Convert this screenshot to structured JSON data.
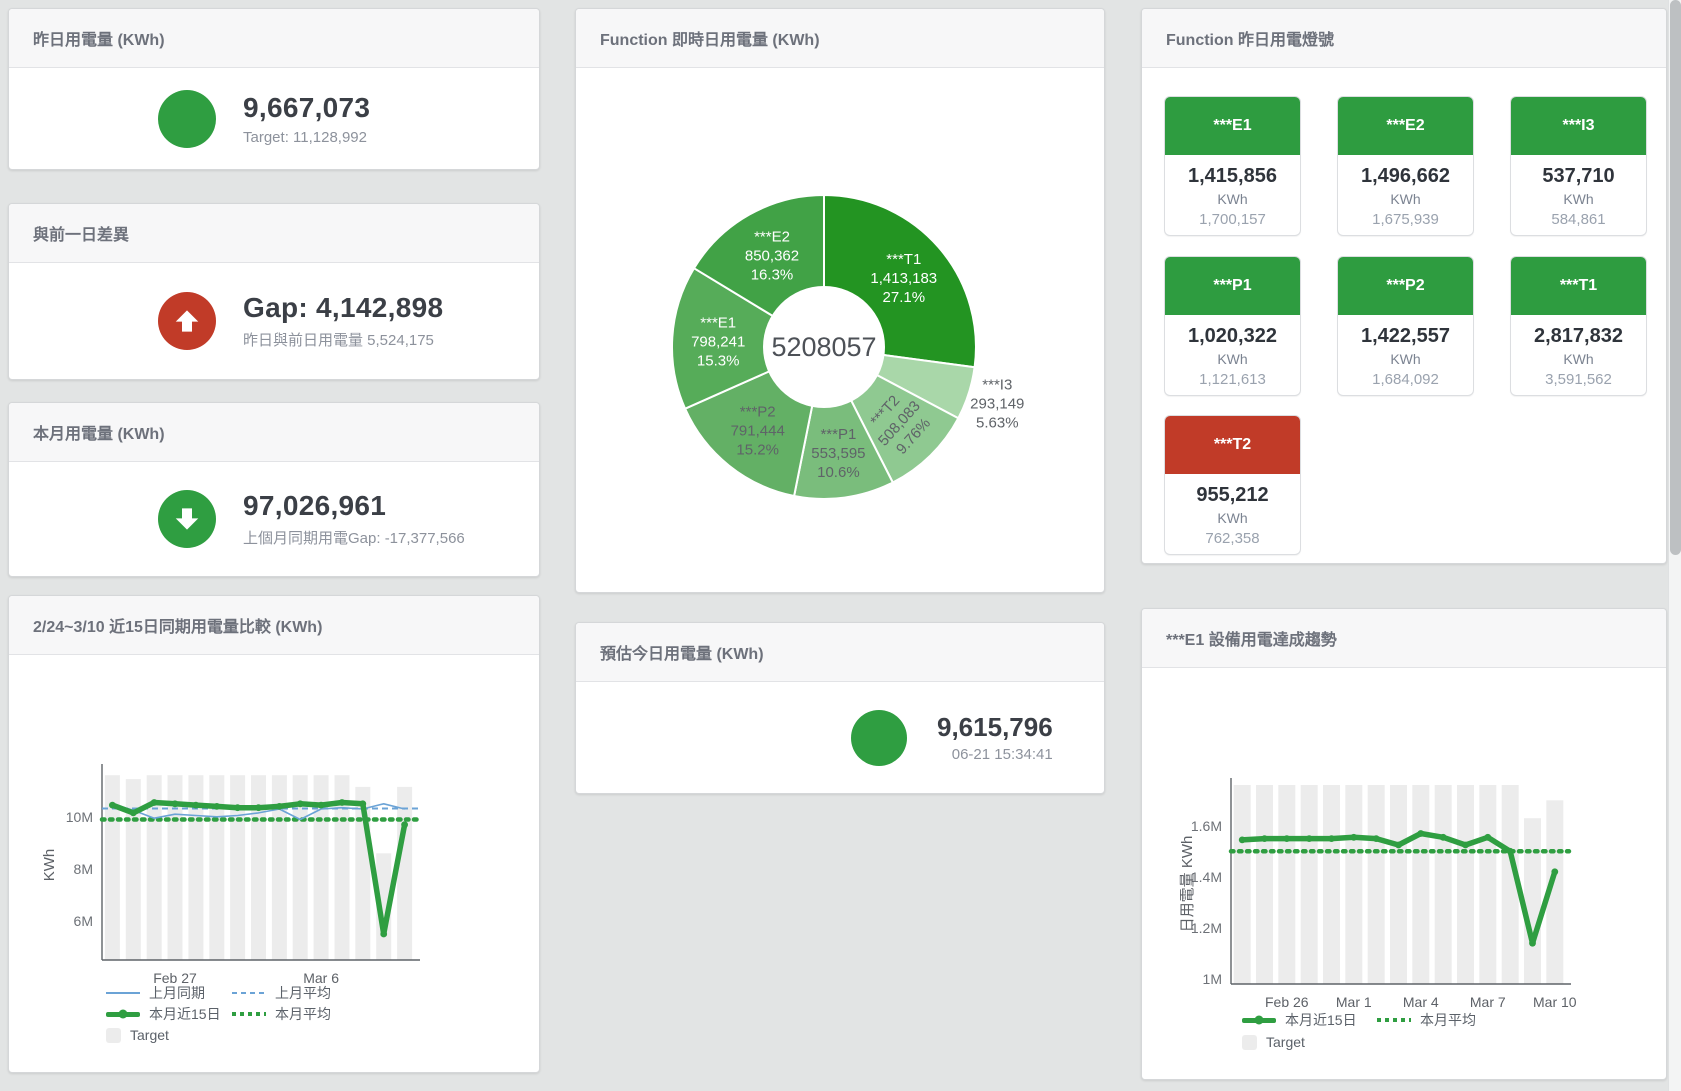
{
  "cards": {
    "yesterday": {
      "title": "昨日用電量 (KWh)",
      "value": "9,667,073",
      "subtitle": "Target: 11,128,992",
      "status": "green"
    },
    "day_gap": {
      "title": "與前一日差異",
      "value": "Gap: 4,142,898",
      "subtitle": "昨日與前日用電量 5,524,175",
      "status": "red-up"
    },
    "month": {
      "title": "本月用電量 (KWh)",
      "value": "97,026,961",
      "subtitle": "上個月同期用電Gap: -17,377,566",
      "status": "green-down"
    },
    "realtime_donut": {
      "title": "Function 即時日用電量 (KWh)"
    },
    "lights": {
      "title": "Function 昨日用電燈號"
    },
    "compare": {
      "title": "2/24~3/10 近15日同期用電量比較 (KWh)"
    },
    "estimate": {
      "title": "預估今日用電量 (KWh)",
      "value": "9,615,796",
      "subtitle": "06-21 15:34:41",
      "status": "green"
    },
    "trend": {
      "title": "***E1 設備用電達成趨勢"
    }
  },
  "lights_tiles": [
    {
      "label": "***E1",
      "value": "1,415,856",
      "unit": "KWh",
      "target": "1,700,157",
      "status": "green"
    },
    {
      "label": "***E2",
      "value": "1,496,662",
      "unit": "KWh",
      "target": "1,675,939",
      "status": "green"
    },
    {
      "label": "***I3",
      "value": "537,710",
      "unit": "KWh",
      "target": "584,861",
      "status": "green"
    },
    {
      "label": "***P1",
      "value": "1,020,322",
      "unit": "KWh",
      "target": "1,121,613",
      "status": "green"
    },
    {
      "label": "***P2",
      "value": "1,422,557",
      "unit": "KWh",
      "target": "1,684,092",
      "status": "green"
    },
    {
      "label": "***T1",
      "value": "2,817,832",
      "unit": "KWh",
      "target": "3,591,562",
      "status": "green"
    },
    {
      "label": "***T2",
      "value": "955,212",
      "unit": "KWh",
      "target": "762,358",
      "status": "red"
    }
  ],
  "colors": {
    "green": "#2f9e41",
    "red": "#c13b28",
    "blue_line": "#6ba3d6",
    "bar_gray": "#ececec"
  },
  "chart_data": [
    {
      "type": "pie",
      "title": "Function 即時日用電量 (KWh)",
      "center_label": "5208057",
      "legend_position": "none",
      "slices": [
        {
          "name": "***T1",
          "value": 1413183,
          "value_label": "1,413,183",
          "pct_label": "27.1%",
          "color": "#239422",
          "text": "#ffffff"
        },
        {
          "name": "***I3",
          "value": 293149,
          "value_label": "293,149",
          "pct_label": "5.63%",
          "color": "#a9d7a9",
          "text": "#5f6368",
          "outside": true
        },
        {
          "name": "***T2",
          "value": 508083,
          "value_label": "508,083",
          "pct_label": "9.76%",
          "color": "#8fc991",
          "text": "#5f6368",
          "rotate": -48
        },
        {
          "name": "***P1",
          "value": 553595,
          "value_label": "553,595",
          "pct_label": "10.6%",
          "color": "#7abd7c",
          "text": "#5f6368"
        },
        {
          "name": "***P2",
          "value": 791444,
          "value_label": "791,444",
          "pct_label": "15.2%",
          "color": "#63b065",
          "text": "#5f6368"
        },
        {
          "name": "***E1",
          "value": 798241,
          "value_label": "798,241",
          "pct_label": "15.3%",
          "color": "#56ac59",
          "text": "#ffffff"
        },
        {
          "name": "***E2",
          "value": 850362,
          "value_label": "850,362",
          "pct_label": "16.3%",
          "color": "#41a246",
          "text": "#ffffff"
        }
      ]
    },
    {
      "type": "line",
      "title": "2/24~3/10 近15日同期用電量比較 (KWh)",
      "ylabel": "KWh",
      "ylim": [
        4500000,
        11800000
      ],
      "yticks": [
        6000000,
        8000000,
        10000000
      ],
      "ytick_labels": [
        "6M",
        "8M",
        "10M"
      ],
      "x_count": 15,
      "x_tick_positions": [
        3,
        10
      ],
      "x_tick_labels": [
        "Feb 27",
        "Mar 6"
      ],
      "bar_color": "#ececec",
      "target_bars": [
        11600000,
        11450000,
        11600000,
        11600000,
        11600000,
        11600000,
        11600000,
        11600000,
        11600000,
        11600000,
        11600000,
        11600000,
        11150000,
        8600000,
        11150000
      ],
      "series": [
        {
          "name": "上月平均",
          "style": "line_dashed",
          "color": "#6ba3d6",
          "constant": 10320000
        },
        {
          "name": "本月平均",
          "style": "line_dotted",
          "color": "#2f9e41",
          "constant": 9900000
        },
        {
          "name": "上月同期",
          "style": "line_thin",
          "color": "#6ba3d6",
          "values": [
            10500000,
            10250000,
            9950000,
            10100000,
            10050000,
            10000000,
            10050000,
            10150000,
            10300000,
            9900000,
            10300000,
            10350000,
            10300000,
            10500000,
            10300000
          ]
        },
        {
          "name": "本月近15日",
          "style": "line_thick",
          "color": "#2f9e41",
          "values": [
            10450000,
            10150000,
            10550000,
            10500000,
            10450000,
            10400000,
            10350000,
            10350000,
            10400000,
            10500000,
            10450000,
            10550000,
            10500000,
            5500000,
            9700000
          ]
        }
      ],
      "legend_rows": [
        [
          {
            "label": "上月同期",
            "swatch": "line_thin_blue"
          },
          {
            "label": "上月平均",
            "swatch": "dashed_blue"
          }
        ],
        [
          {
            "label": "本月近15日",
            "swatch": "thick_green"
          },
          {
            "label": "本月平均",
            "swatch": "dotted_green"
          }
        ],
        [
          {
            "label": "Target",
            "swatch": "box_gray"
          }
        ]
      ]
    },
    {
      "type": "line",
      "title": "***E1 設備用電達成趨勢",
      "ylabel": "日用電量 KWh",
      "ylim": [
        980000,
        1764000
      ],
      "yticks": [
        1000000,
        1200000,
        1400000,
        1600000
      ],
      "ytick_labels": [
        "1M",
        "1.2M",
        "1.4M",
        "1.6M"
      ],
      "x_count": 15,
      "x_tick_positions": [
        2,
        5,
        8,
        11,
        14
      ],
      "x_tick_labels": [
        "Feb 26",
        "Mar 1",
        "Mar 4",
        "Mar 7",
        "Mar 10"
      ],
      "bar_color": "#ececec",
      "target_bars": [
        1760000,
        1760000,
        1760000,
        1760000,
        1760000,
        1760000,
        1760000,
        1760000,
        1760000,
        1760000,
        1760000,
        1760000,
        1760000,
        1630000,
        1700000
      ],
      "series": [
        {
          "name": "本月平均",
          "style": "line_dotted",
          "color": "#2f9e41",
          "constant": 1500000
        },
        {
          "name": "本月近15日",
          "style": "line_thick",
          "color": "#2f9e41",
          "values": [
            1545000,
            1550000,
            1550000,
            1550000,
            1550000,
            1555000,
            1550000,
            1525000,
            1570000,
            1555000,
            1525000,
            1555000,
            1500000,
            1140000,
            1420000
          ]
        }
      ],
      "legend_rows": [
        [
          {
            "label": "本月近15日",
            "swatch": "thick_green"
          },
          {
            "label": "本月平均",
            "swatch": "dotted_green"
          }
        ],
        [
          {
            "label": "Target",
            "swatch": "box_gray"
          }
        ]
      ]
    }
  ]
}
